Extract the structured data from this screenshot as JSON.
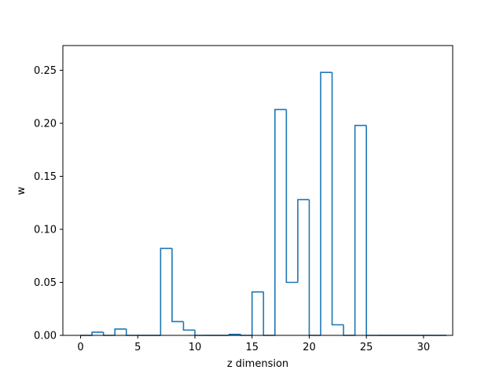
{
  "chart_data": {
    "type": "bar",
    "style": "step-histogram",
    "xlabel": "z dimension",
    "ylabel": "w",
    "xlim": [
      -1.55,
      32.55
    ],
    "ylim": [
      0,
      0.2733
    ],
    "xticks": [
      0,
      5,
      10,
      15,
      20,
      25,
      30
    ],
    "yticks": [
      0.0,
      0.05,
      0.1,
      0.15,
      0.2,
      0.25
    ],
    "ytick_labels": [
      "0.00",
      "0.05",
      "0.10",
      "0.15",
      "0.20",
      "0.25"
    ],
    "grid": false,
    "color": "#1f77b4",
    "x": [
      0,
      1,
      2,
      3,
      4,
      5,
      6,
      7,
      8,
      9,
      10,
      11,
      12,
      13,
      14,
      15,
      16,
      17,
      18,
      19,
      20,
      21,
      22,
      23,
      24,
      25,
      26,
      27,
      28,
      29,
      30,
      31
    ],
    "values": [
      0.0,
      0.003,
      0.0,
      0.006,
      0.0,
      0.0,
      0.0,
      0.082,
      0.013,
      0.005,
      0.0,
      0.0,
      0.0,
      0.001,
      0.0,
      0.041,
      0.0,
      0.213,
      0.05,
      0.128,
      0.0,
      0.248,
      0.01,
      0.0,
      0.198,
      0.0,
      0.0,
      0.0,
      0.0,
      0.0,
      0.0,
      0.0
    ]
  }
}
